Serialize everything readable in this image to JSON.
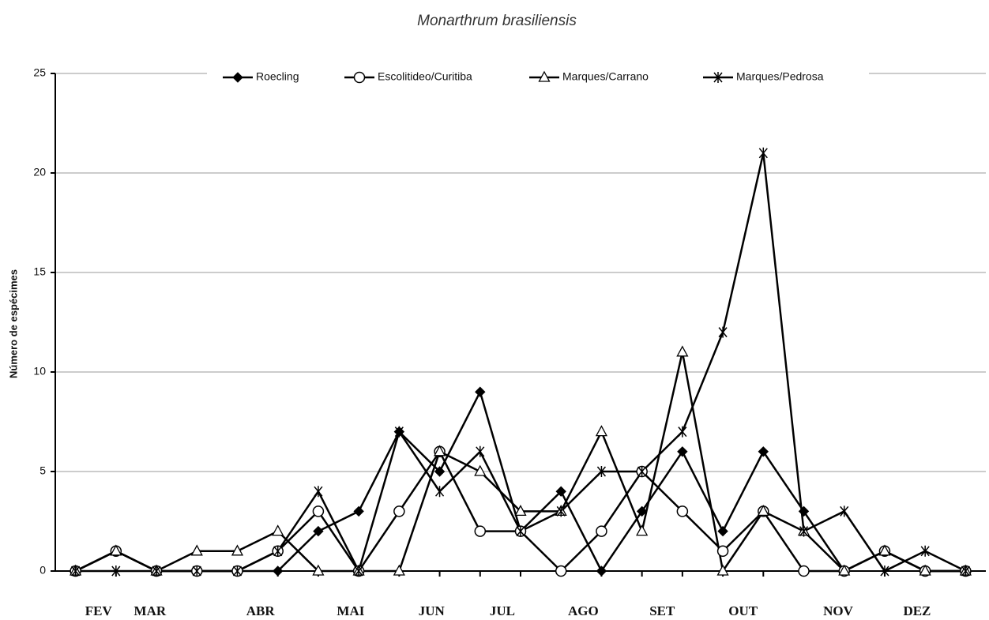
{
  "chart_data": {
    "type": "line",
    "title": "Monarthrum brasiliensis",
    "y_label": "Número de espécimes",
    "x": [
      1,
      2,
      3,
      4,
      5,
      6,
      7,
      8,
      9,
      10,
      11,
      12,
      13,
      14,
      15,
      16,
      17,
      18,
      19,
      20,
      21,
      22,
      23
    ],
    "xlim": [
      0.5,
      23.5
    ],
    "xticks": [
      {
        "value": 1.57,
        "label": "FEV"
      },
      {
        "value": 2.84,
        "label": "MAR"
      },
      {
        "value": 5.57,
        "label": "ABR"
      },
      {
        "value": 7.8,
        "label": "MAI"
      },
      {
        "value": 9.8,
        "label": "JUN"
      },
      {
        "value": 11.55,
        "label": "JUL"
      },
      {
        "value": 13.55,
        "label": "AGO"
      },
      {
        "value": 15.5,
        "label": "SET"
      },
      {
        "value": 17.5,
        "label": "OUT"
      },
      {
        "value": 19.85,
        "label": "NOV"
      },
      {
        "value": 21.8,
        "label": "DEZ"
      }
    ],
    "ylim": [
      0,
      25
    ],
    "yticks": [
      0,
      5,
      10,
      15,
      20,
      25
    ],
    "grid": true,
    "legend": "top",
    "series": [
      {
        "name": "Roecling",
        "color": "#000000",
        "marker": "diamond",
        "values": [
          0,
          1,
          0,
          0,
          0,
          0,
          2,
          3,
          7,
          5,
          9,
          2,
          4,
          0,
          3,
          6,
          2,
          6,
          3,
          0,
          1,
          0,
          0
        ]
      },
      {
        "name": "Escolitideo/Curitiba",
        "color": "#000000",
        "marker": "circle",
        "values": [
          0,
          1,
          0,
          0,
          0,
          1,
          3,
          0,
          3,
          6,
          2,
          2,
          0,
          2,
          5,
          3,
          1,
          3,
          0,
          0,
          1,
          0,
          0
        ]
      },
      {
        "name": "Marques/Carrano",
        "color": "#000000",
        "marker": "triangle",
        "values": [
          0,
          1,
          0,
          1,
          1,
          2,
          0,
          0,
          0,
          6,
          5,
          3,
          3,
          7,
          2,
          11,
          0,
          3,
          2,
          0,
          1,
          0,
          0
        ]
      },
      {
        "name": "Marques/Pedrosa",
        "color": "#000000",
        "marker": "star",
        "values": [
          0,
          0,
          0,
          0,
          0,
          1,
          4,
          0,
          7,
          4,
          6,
          2,
          3,
          5,
          5,
          7,
          12,
          21,
          2,
          3,
          0,
          1,
          0
        ]
      }
    ]
  }
}
